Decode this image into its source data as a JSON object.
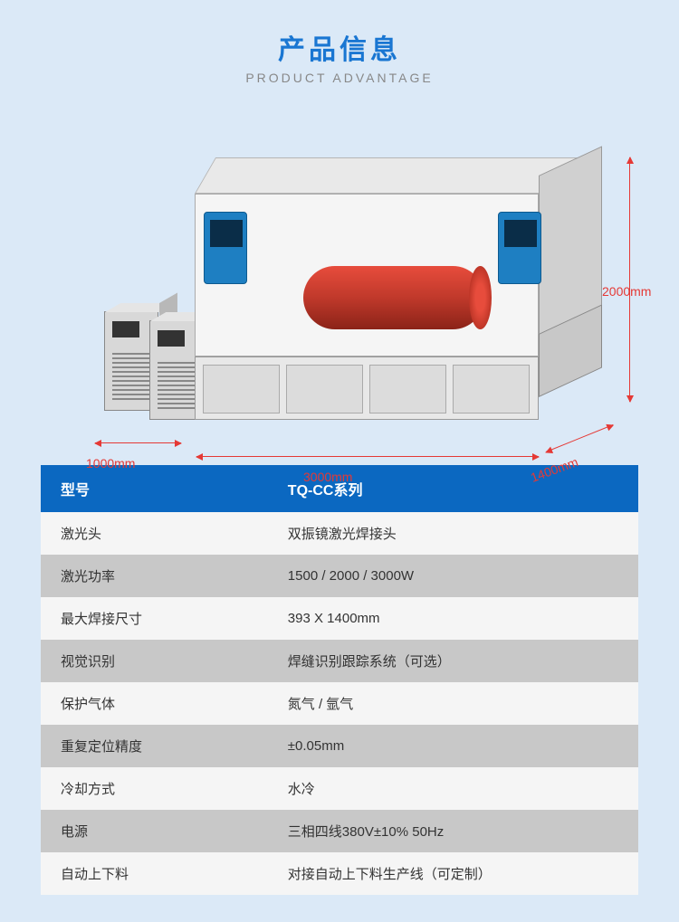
{
  "header": {
    "title_cn": "产品信息",
    "title_en": "PRODUCT ADVANTAGE"
  },
  "diagram": {
    "dimensions": {
      "width_chiller": "1000mm",
      "width_main": "3000mm",
      "depth": "1400mm",
      "height": "2000mm"
    },
    "colors": {
      "dim_color": "#e53935",
      "cylinder_color": "#e74c3c",
      "panel_color": "#1e7fc2",
      "frame_color": "#e9e9e9",
      "cabinet_color": "#e8e8e8",
      "chiller_color": "#d8d8d8",
      "background": "#dbe9f7"
    }
  },
  "table": {
    "header": {
      "label": "型号",
      "value": "TQ-CC系列"
    },
    "rows": [
      {
        "label": "激光头",
        "value": "双振镜激光焊接头"
      },
      {
        "label": "激光功率",
        "value": "1500 / 2000 / 3000W"
      },
      {
        "label": "最大焊接尺寸",
        "value": "393 X 1400mm"
      },
      {
        "label": "视觉识别",
        "value": "焊缝识别跟踪系统（可选）"
      },
      {
        "label": "保护气体",
        "value": "氮气 / 氩气"
      },
      {
        "label": "重复定位精度",
        "value": "±0.05mm"
      },
      {
        "label": "冷却方式",
        "value": "水冷"
      },
      {
        "label": "电源",
        "value": "三相四线380V±10%  50Hz"
      },
      {
        "label": "自动上下料",
        "value": "对接自动上下料生产线（可定制）"
      }
    ],
    "header_bg": "#0b68c1",
    "row_odd_bg": "#f5f5f5",
    "row_even_bg": "#c8c8c8",
    "label_fontsize": 15
  }
}
